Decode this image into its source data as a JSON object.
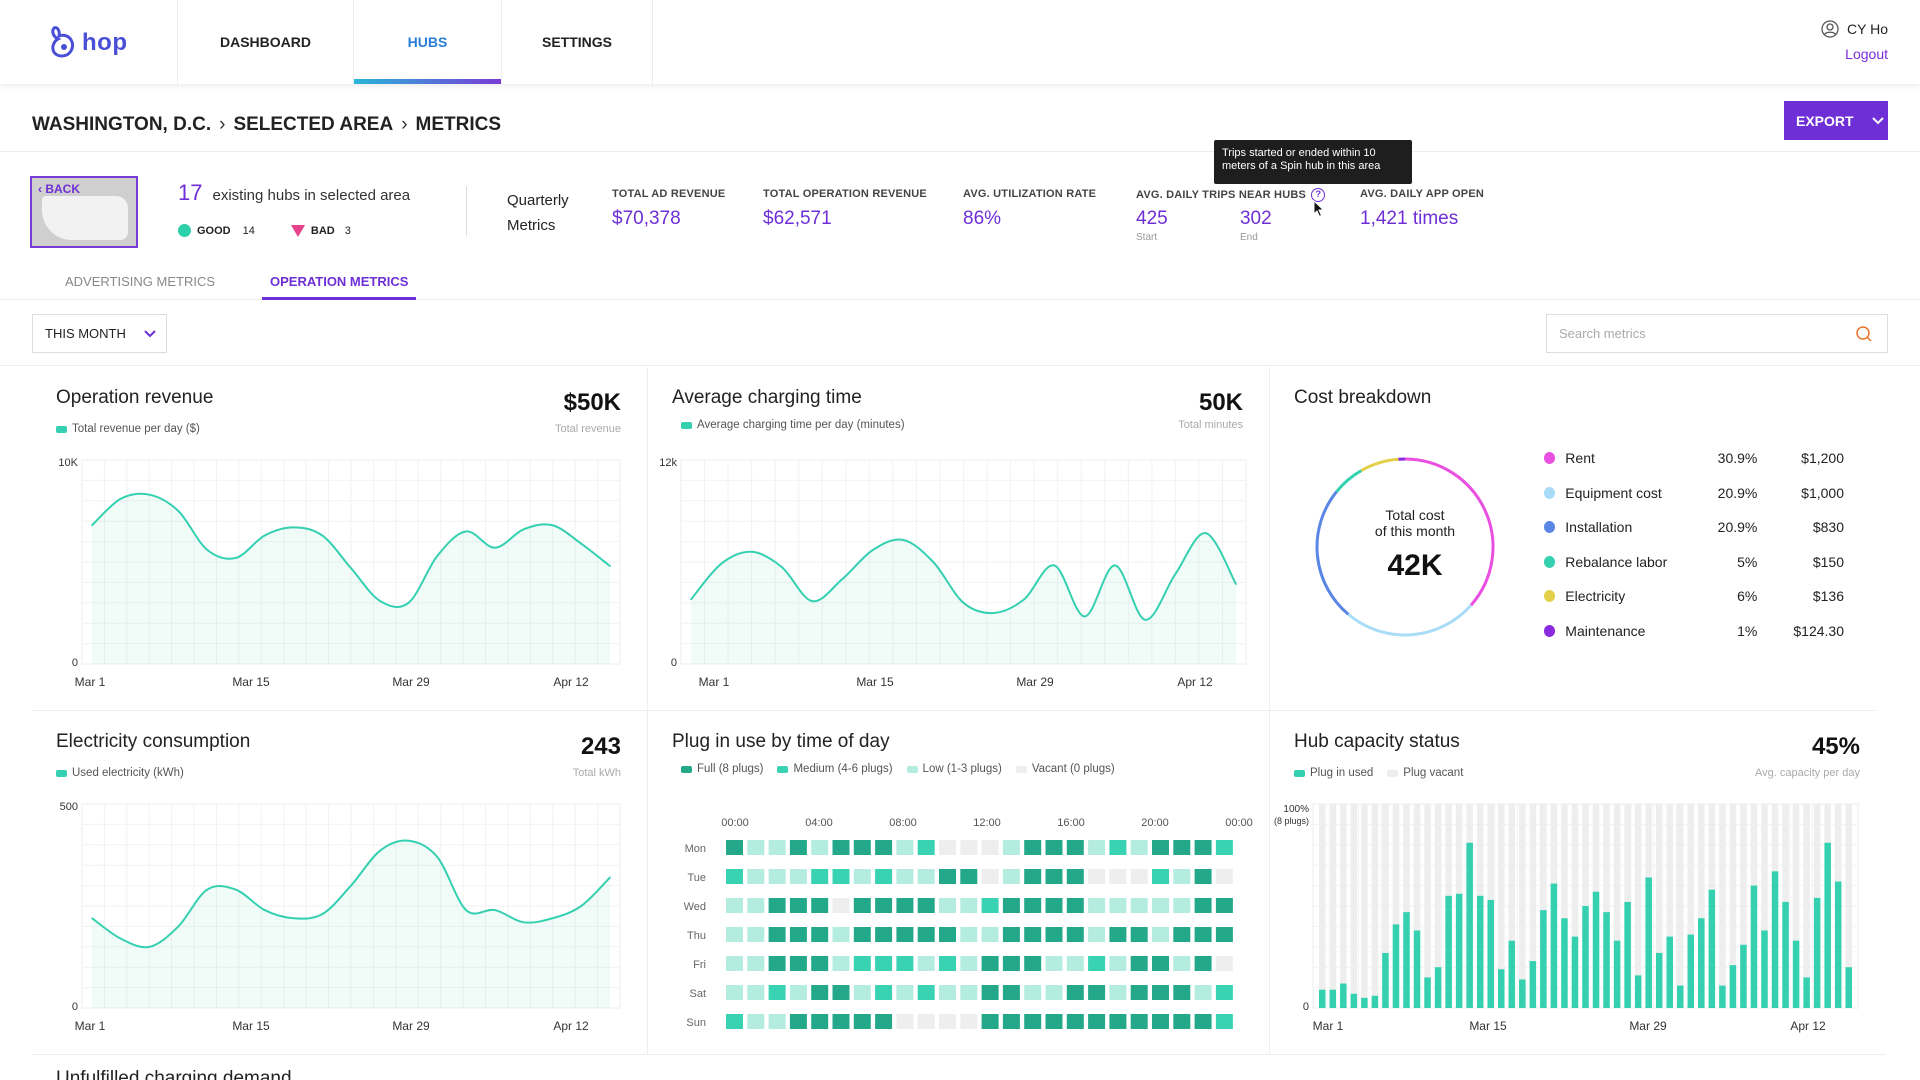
{
  "app": {
    "logo_text": "hop",
    "logo_icon": "rabbit-logo-icon",
    "brand_color": "#6e2fd6",
    "accent_color": "#2ed0aa"
  },
  "nav": {
    "items": [
      "DASHBOARD",
      "HUBS",
      "SETTINGS"
    ],
    "active": "HUBS"
  },
  "user": {
    "name": "CY Ho",
    "logout": "Logout"
  },
  "breadcrumb": [
    "WASHINGTON, D.C.",
    "SELECTED AREA",
    "METRICS"
  ],
  "export_label": "EXPORT",
  "summary": {
    "back_label": "BACK",
    "hub_count": "17",
    "hub_text": "existing hubs in selected area",
    "good_label": "GOOD",
    "good_count": "14",
    "bad_label": "BAD",
    "bad_count": "3",
    "quarterly_line1": "Quarterly",
    "quarterly_line2": "Metrics",
    "metrics": [
      {
        "label": "TOTAL AD REVENUE",
        "value": "$70,378"
      },
      {
        "label": "TOTAL OPERATION REVENUE",
        "value": "$62,571"
      },
      {
        "label": "AVG. UTILIZATION RATE",
        "value": "86%"
      },
      {
        "label": "AVG. DAILY TRIPS NEAR HUBS",
        "start": "425",
        "start_label": "Start",
        "end": "302",
        "end_label": "End"
      },
      {
        "label": "AVG. DAILY APP OPEN",
        "value": "1,421 times"
      }
    ],
    "tooltip": "Trips started or ended within 10 meters of a Spin hub in this area"
  },
  "tabs": [
    "ADVERTISING METRICS",
    "OPERATION METRICS"
  ],
  "active_tab": "OPERATION METRICS",
  "filter": {
    "period": "THIS MONTH",
    "search_placeholder": "Search metrics"
  },
  "panels": {
    "op_revenue": {
      "title": "Operation revenue",
      "big": "$50K",
      "big_sub": "Total revenue",
      "legend": "Total revenue per day ($)"
    },
    "charging": {
      "title": "Average charging time",
      "big": "50K",
      "big_sub": "Total minutes",
      "legend": "Average charging time per day (minutes)"
    },
    "cost": {
      "title": "Cost breakdown",
      "center_line1": "Total cost",
      "center_line2": "of this month",
      "center_value": "42K"
    },
    "electricity": {
      "title": "Electricity consumption",
      "big": "243",
      "big_sub": "Total kWh",
      "legend": "Used electricity (kWh)"
    },
    "plug": {
      "title": "Plug in use by time of day",
      "legend": [
        "Full (8 plugs)",
        "Medium (4-6 plugs)",
        "Low (1-3 plugs)",
        "Vacant (0 plugs)"
      ]
    },
    "capacity": {
      "title": "Hub capacity status",
      "big": "45%",
      "big_sub": "Avg. capacity per day",
      "legend": [
        "Plug in used",
        "Plug vacant"
      ]
    },
    "bottom_title": "Unfulfilled charging demand"
  },
  "cost_breakdown": [
    {
      "name": "Rent",
      "pct": "30.9%",
      "amount": "$1,200",
      "color": "#e94fe0"
    },
    {
      "name": "Equipment cost",
      "pct": "20.9%",
      "amount": "$1,000",
      "color": "#a9dcf7"
    },
    {
      "name": "Installation",
      "pct": "20.9%",
      "amount": "$830",
      "color": "#5a86e6"
    },
    {
      "name": "Rebalance labor",
      "pct": "5%",
      "amount": "$150",
      "color": "#35d0b0"
    },
    {
      "name": "Electricity",
      "pct": "6%",
      "amount": "$136",
      "color": "#e3cf4a"
    },
    {
      "name": "Maintenance",
      "pct": "1%",
      "amount": "$124.30",
      "color": "#8a2be2"
    }
  ],
  "chart_data": [
    {
      "type": "area",
      "title": "Operation revenue",
      "x_ticks": [
        "Mar 1",
        "Mar 15",
        "Mar 29",
        "Apr 12"
      ],
      "y_ticks": [
        "10K",
        "0"
      ],
      "ylim": [
        0,
        10000
      ],
      "series": [
        {
          "name": "Total revenue per day ($)",
          "values": [
            6800,
            8100,
            8300,
            7500,
            5600,
            5200,
            6300,
            6700,
            6300,
            4700,
            3100,
            3000,
            5300,
            6500,
            5700,
            6600,
            6800,
            5900,
            4800
          ]
        }
      ]
    },
    {
      "type": "area",
      "title": "Average charging time",
      "x_ticks": [
        "Mar 1",
        "Mar 15",
        "Mar 29",
        "Apr 12"
      ],
      "y_ticks": [
        "12k",
        "0"
      ],
      "ylim": [
        0,
        12000
      ],
      "series": [
        {
          "name": "Average charging time per day (minutes)",
          "values": [
            3800,
            5900,
            6600,
            5700,
            3700,
            5000,
            6700,
            7300,
            6000,
            3600,
            3000,
            3800,
            5800,
            2800,
            5800,
            2600,
            5300,
            7700,
            4700
          ]
        }
      ]
    },
    {
      "type": "area",
      "title": "Electricity consumption",
      "x_ticks": [
        "Mar 1",
        "Mar 15",
        "Mar 29",
        "Apr 12"
      ],
      "y_ticks": [
        "500",
        "0"
      ],
      "ylim": [
        0,
        500
      ],
      "series": [
        {
          "name": "Used electricity (kWh)",
          "values": [
            220,
            170,
            150,
            200,
            290,
            290,
            240,
            220,
            230,
            300,
            385,
            410,
            370,
            240,
            240,
            210,
            220,
            250,
            320
          ]
        }
      ]
    },
    {
      "type": "heatmap",
      "title": "Plug in use by time of day",
      "x_ticks": [
        "00:00",
        "04:00",
        "08:00",
        "12:00",
        "16:00",
        "20:00",
        "00:00"
      ],
      "rows": [
        "Mon",
        "Tue",
        "Wed",
        "Thu",
        "Fri",
        "Sat",
        "Sun"
      ],
      "levels": [
        "Vacant (0 plugs)",
        "Low (1-3 plugs)",
        "Medium (4-6 plugs)",
        "Full (8 plugs)"
      ],
      "values": [
        [
          3,
          1,
          1,
          3,
          1,
          3,
          3,
          3,
          1,
          2,
          0,
          0,
          0,
          1,
          3,
          3,
          3,
          1,
          2,
          1,
          3,
          3,
          3,
          2
        ],
        [
          2,
          1,
          1,
          1,
          2,
          2,
          1,
          2,
          1,
          1,
          3,
          3,
          0,
          1,
          3,
          3,
          3,
          0,
          0,
          0,
          2,
          1,
          3,
          0
        ],
        [
          1,
          1,
          3,
          3,
          3,
          0,
          3,
          3,
          3,
          3,
          1,
          1,
          2,
          3,
          3,
          3,
          3,
          1,
          1,
          1,
          1,
          1,
          3,
          3
        ],
        [
          1,
          1,
          3,
          3,
          3,
          1,
          3,
          3,
          3,
          3,
          3,
          1,
          1,
          3,
          3,
          3,
          3,
          1,
          3,
          3,
          1,
          3,
          3,
          3
        ],
        [
          1,
          1,
          3,
          3,
          3,
          1,
          2,
          2,
          2,
          1,
          2,
          1,
          3,
          3,
          3,
          1,
          1,
          2,
          1,
          3,
          3,
          1,
          3,
          0
        ],
        [
          1,
          1,
          2,
          1,
          3,
          3,
          1,
          2,
          1,
          2,
          1,
          1,
          3,
          3,
          1,
          1,
          3,
          3,
          1,
          3,
          3,
          3,
          1,
          2
        ],
        [
          2,
          1,
          1,
          3,
          3,
          3,
          3,
          3,
          0,
          0,
          0,
          0,
          3,
          3,
          3,
          3,
          3,
          3,
          3,
          3,
          3,
          3,
          3,
          2
        ]
      ]
    },
    {
      "type": "bar",
      "title": "Hub capacity status",
      "x_ticks": [
        "Mar 1",
        "Mar 15",
        "Mar 29",
        "Apr 12"
      ],
      "y_ticks": [
        "100%",
        "(8 plugs)",
        "0"
      ],
      "ylim": [
        0,
        100
      ],
      "series": [
        {
          "name": "Plug in used",
          "values": [
            9,
            9,
            12,
            7,
            5,
            6,
            27,
            41,
            47,
            38,
            15,
            20,
            55,
            56,
            81,
            55,
            53,
            19,
            33,
            14,
            23,
            48,
            61,
            44,
            35,
            50,
            57,
            47,
            33,
            52,
            16,
            64,
            27,
            35,
            11,
            36,
            44,
            58,
            11,
            21,
            31,
            60,
            38,
            67,
            52,
            33,
            15,
            54,
            81,
            62,
            20
          ]
        },
        {
          "name": "Plug vacant",
          "values": [
            91,
            91,
            88,
            93,
            95,
            94,
            73,
            59,
            53,
            62,
            85,
            80,
            45,
            44,
            19,
            45,
            47,
            81,
            67,
            86,
            77,
            52,
            39,
            56,
            65,
            50,
            43,
            53,
            67,
            48,
            84,
            36,
            73,
            65,
            89,
            64,
            56,
            42,
            89,
            79,
            69,
            40,
            62,
            33,
            48,
            67,
            85,
            46,
            19,
            38,
            80
          ]
        }
      ]
    }
  ]
}
